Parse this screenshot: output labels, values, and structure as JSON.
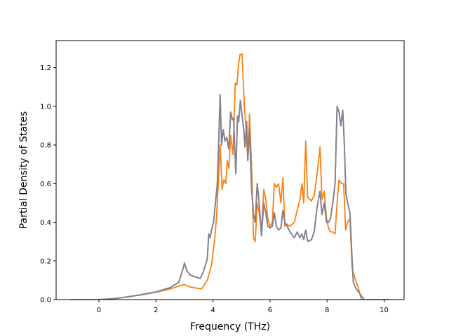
{
  "chart_data": {
    "type": "line",
    "title": "",
    "xlabel": "Frequency (THz)",
    "ylabel": "Partial Density of States",
    "xlim": [
      -1.5,
      10.7
    ],
    "ylim": [
      0.0,
      1.34
    ],
    "xticks": [
      0,
      2,
      4,
      6,
      8,
      10
    ],
    "xtick_labels": [
      "0",
      "2",
      "4",
      "6",
      "8",
      "10"
    ],
    "yticks": [
      0.0,
      0.2,
      0.4,
      0.6,
      0.8,
      1.0,
      1.2
    ],
    "ytick_labels": [
      "0.0",
      "0.2",
      "0.4",
      "0.6",
      "0.8",
      "1.0",
      "1.2"
    ],
    "grid": false,
    "legend": "none",
    "series": [
      {
        "color": "#ff7f0e",
        "points": [
          [
            -1.0,
            0.0
          ],
          [
            0.0,
            0.0
          ],
          [
            0.5,
            0.004
          ],
          [
            1.0,
            0.013
          ],
          [
            1.5,
            0.025
          ],
          [
            2.0,
            0.038
          ],
          [
            2.5,
            0.055
          ],
          [
            2.9,
            0.075
          ],
          [
            3.0,
            0.078
          ],
          [
            3.2,
            0.065
          ],
          [
            3.6,
            0.055
          ],
          [
            3.8,
            0.1
          ],
          [
            3.95,
            0.18
          ],
          [
            4.05,
            0.3
          ],
          [
            4.12,
            0.42
          ],
          [
            4.18,
            0.58
          ],
          [
            4.25,
            0.8
          ],
          [
            4.32,
            0.57
          ],
          [
            4.38,
            0.62
          ],
          [
            4.45,
            0.6
          ],
          [
            4.5,
            0.72
          ],
          [
            4.56,
            0.68
          ],
          [
            4.62,
            0.85
          ],
          [
            4.7,
            0.75
          ],
          [
            4.78,
            1.12
          ],
          [
            4.84,
            1.11
          ],
          [
            4.9,
            1.22
          ],
          [
            4.95,
            1.27
          ],
          [
            5.02,
            1.27
          ],
          [
            5.1,
            1.0
          ],
          [
            5.16,
            0.88
          ],
          [
            5.22,
            0.72
          ],
          [
            5.28,
            0.96
          ],
          [
            5.35,
            0.7
          ],
          [
            5.42,
            0.32
          ],
          [
            5.48,
            0.3
          ],
          [
            5.55,
            0.5
          ],
          [
            5.62,
            0.45
          ],
          [
            5.7,
            0.35
          ],
          [
            5.78,
            0.57
          ],
          [
            5.85,
            0.52
          ],
          [
            5.92,
            0.42
          ],
          [
            6.0,
            0.38
          ],
          [
            6.08,
            0.4
          ],
          [
            6.15,
            0.6
          ],
          [
            6.22,
            0.58
          ],
          [
            6.3,
            0.6
          ],
          [
            6.38,
            0.5
          ],
          [
            6.45,
            0.63
          ],
          [
            6.52,
            0.38
          ],
          [
            6.6,
            0.39
          ],
          [
            6.7,
            0.38
          ],
          [
            6.85,
            0.4
          ],
          [
            6.95,
            0.46
          ],
          [
            7.05,
            0.52
          ],
          [
            7.12,
            0.6
          ],
          [
            7.18,
            0.5
          ],
          [
            7.25,
            0.82
          ],
          [
            7.32,
            0.53
          ],
          [
            7.45,
            0.51
          ],
          [
            7.55,
            0.54
          ],
          [
            7.65,
            0.65
          ],
          [
            7.75,
            0.79
          ],
          [
            7.82,
            0.52
          ],
          [
            7.9,
            0.56
          ],
          [
            7.98,
            0.42
          ],
          [
            8.05,
            0.37
          ],
          [
            8.12,
            0.35
          ],
          [
            8.2,
            0.35
          ],
          [
            8.28,
            0.34
          ],
          [
            8.35,
            0.5
          ],
          [
            8.42,
            0.62
          ],
          [
            8.5,
            0.6
          ],
          [
            8.58,
            0.6
          ],
          [
            8.65,
            0.36
          ],
          [
            8.72,
            0.4
          ],
          [
            8.8,
            0.42
          ],
          [
            8.88,
            0.16
          ],
          [
            9.0,
            0.1
          ],
          [
            9.1,
            0.06
          ],
          [
            9.2,
            0.0
          ],
          [
            9.4,
            0.0
          ],
          [
            10.2,
            0.0
          ]
        ]
      },
      {
        "color": "#1f77b4",
        "points": [
          [
            -1.0,
            0.0
          ],
          [
            0.0,
            0.0
          ],
          [
            0.5,
            0.005
          ],
          [
            1.0,
            0.014
          ],
          [
            1.5,
            0.026
          ],
          [
            2.0,
            0.04
          ],
          [
            2.5,
            0.062
          ],
          [
            2.8,
            0.09
          ],
          [
            2.95,
            0.16
          ],
          [
            3.0,
            0.19
          ],
          [
            3.08,
            0.15
          ],
          [
            3.2,
            0.128
          ],
          [
            3.4,
            0.116
          ],
          [
            3.55,
            0.11
          ],
          [
            3.65,
            0.14
          ],
          [
            3.8,
            0.21
          ],
          [
            3.85,
            0.34
          ],
          [
            3.9,
            0.32
          ],
          [
            3.95,
            0.36
          ],
          [
            4.02,
            0.4
          ],
          [
            4.1,
            0.52
          ],
          [
            4.15,
            0.6
          ],
          [
            4.2,
            0.82
          ],
          [
            4.25,
            1.06
          ],
          [
            4.3,
            0.8
          ],
          [
            4.36,
            0.88
          ],
          [
            4.42,
            0.82
          ],
          [
            4.48,
            0.84
          ],
          [
            4.55,
            0.78
          ],
          [
            4.62,
            0.97
          ],
          [
            4.68,
            0.93
          ],
          [
            4.72,
            0.94
          ],
          [
            4.8,
            0.65
          ],
          [
            4.86,
            0.95
          ],
          [
            4.9,
            0.92
          ],
          [
            4.96,
            1.03
          ],
          [
            5.02,
            0.95
          ],
          [
            5.08,
            0.88
          ],
          [
            5.12,
            0.79
          ],
          [
            5.18,
            0.92
          ],
          [
            5.22,
            0.72
          ],
          [
            5.28,
            0.88
          ],
          [
            5.35,
            0.58
          ],
          [
            5.42,
            0.44
          ],
          [
            5.48,
            0.4
          ],
          [
            5.55,
            0.6
          ],
          [
            5.62,
            0.5
          ],
          [
            5.7,
            0.33
          ],
          [
            5.78,
            0.5
          ],
          [
            5.85,
            0.45
          ],
          [
            5.92,
            0.38
          ],
          [
            6.0,
            0.37
          ],
          [
            6.08,
            0.38
          ],
          [
            6.15,
            0.45
          ],
          [
            6.22,
            0.38
          ],
          [
            6.3,
            0.36
          ],
          [
            6.38,
            0.37
          ],
          [
            6.45,
            0.46
          ],
          [
            6.52,
            0.4
          ],
          [
            6.6,
            0.38
          ],
          [
            6.7,
            0.35
          ],
          [
            6.85,
            0.32
          ],
          [
            6.95,
            0.35
          ],
          [
            7.05,
            0.32
          ],
          [
            7.12,
            0.34
          ],
          [
            7.18,
            0.31
          ],
          [
            7.25,
            0.36
          ],
          [
            7.32,
            0.3
          ],
          [
            7.45,
            0.31
          ],
          [
            7.55,
            0.35
          ],
          [
            7.65,
            0.48
          ],
          [
            7.75,
            0.56
          ],
          [
            7.82,
            0.44
          ],
          [
            7.9,
            0.5
          ],
          [
            7.98,
            0.4
          ],
          [
            8.05,
            0.4
          ],
          [
            8.12,
            0.42
          ],
          [
            8.2,
            0.5
          ],
          [
            8.28,
            0.6
          ],
          [
            8.35,
            1.0
          ],
          [
            8.42,
            0.97
          ],
          [
            8.48,
            0.9
          ],
          [
            8.55,
            0.98
          ],
          [
            8.6,
            0.82
          ],
          [
            8.66,
            0.55
          ],
          [
            8.72,
            0.5
          ],
          [
            8.8,
            0.45
          ],
          [
            8.88,
            0.2
          ],
          [
            8.92,
            0.09
          ],
          [
            9.0,
            0.06
          ],
          [
            9.1,
            0.04
          ],
          [
            9.2,
            0.02
          ],
          [
            9.3,
            0.0
          ],
          [
            9.5,
            0.0
          ],
          [
            10.2,
            0.0
          ]
        ]
      },
      {
        "color": "#8c7f8c",
        "points": [
          [
            -1.0,
            0.0
          ],
          [
            0.0,
            0.0
          ],
          [
            0.5,
            0.005
          ],
          [
            1.0,
            0.014
          ],
          [
            1.5,
            0.026
          ],
          [
            2.0,
            0.04
          ],
          [
            2.5,
            0.062
          ],
          [
            2.8,
            0.09
          ],
          [
            2.95,
            0.16
          ],
          [
            3.0,
            0.19
          ],
          [
            3.08,
            0.15
          ],
          [
            3.2,
            0.128
          ],
          [
            3.4,
            0.116
          ],
          [
            3.55,
            0.11
          ],
          [
            3.65,
            0.14
          ],
          [
            3.8,
            0.21
          ],
          [
            3.85,
            0.34
          ],
          [
            3.9,
            0.32
          ],
          [
            3.95,
            0.36
          ],
          [
            4.02,
            0.4
          ],
          [
            4.1,
            0.52
          ],
          [
            4.15,
            0.6
          ],
          [
            4.2,
            0.82
          ],
          [
            4.25,
            1.06
          ],
          [
            4.3,
            0.8
          ],
          [
            4.36,
            0.88
          ],
          [
            4.42,
            0.82
          ],
          [
            4.48,
            0.84
          ],
          [
            4.55,
            0.78
          ],
          [
            4.62,
            0.97
          ],
          [
            4.68,
            0.93
          ],
          [
            4.72,
            0.94
          ],
          [
            4.8,
            0.65
          ],
          [
            4.86,
            0.95
          ],
          [
            4.9,
            0.92
          ],
          [
            4.96,
            1.03
          ],
          [
            5.02,
            0.95
          ],
          [
            5.08,
            0.88
          ],
          [
            5.12,
            0.79
          ],
          [
            5.18,
            0.92
          ],
          [
            5.22,
            0.72
          ],
          [
            5.28,
            0.88
          ],
          [
            5.35,
            0.58
          ],
          [
            5.42,
            0.44
          ],
          [
            5.48,
            0.4
          ],
          [
            5.55,
            0.6
          ],
          [
            5.62,
            0.5
          ],
          [
            5.7,
            0.33
          ],
          [
            5.78,
            0.5
          ],
          [
            5.85,
            0.45
          ],
          [
            5.92,
            0.38
          ],
          [
            6.0,
            0.37
          ],
          [
            6.08,
            0.38
          ],
          [
            6.15,
            0.45
          ],
          [
            6.22,
            0.38
          ],
          [
            6.3,
            0.36
          ],
          [
            6.38,
            0.37
          ],
          [
            6.45,
            0.46
          ],
          [
            6.52,
            0.4
          ],
          [
            6.6,
            0.38
          ],
          [
            6.7,
            0.35
          ],
          [
            6.85,
            0.32
          ],
          [
            6.95,
            0.35
          ],
          [
            7.05,
            0.32
          ],
          [
            7.12,
            0.34
          ],
          [
            7.18,
            0.31
          ],
          [
            7.25,
            0.36
          ],
          [
            7.32,
            0.3
          ],
          [
            7.45,
            0.31
          ],
          [
            7.55,
            0.35
          ],
          [
            7.65,
            0.48
          ],
          [
            7.75,
            0.56
          ],
          [
            7.82,
            0.44
          ],
          [
            7.9,
            0.5
          ],
          [
            7.98,
            0.4
          ],
          [
            8.05,
            0.4
          ],
          [
            8.12,
            0.42
          ],
          [
            8.2,
            0.5
          ],
          [
            8.28,
            0.6
          ],
          [
            8.35,
            1.0
          ],
          [
            8.42,
            0.97
          ],
          [
            8.48,
            0.9
          ],
          [
            8.55,
            0.98
          ],
          [
            8.6,
            0.82
          ],
          [
            8.66,
            0.55
          ],
          [
            8.72,
            0.5
          ],
          [
            8.8,
            0.45
          ],
          [
            8.88,
            0.2
          ],
          [
            8.92,
            0.09
          ],
          [
            9.0,
            0.06
          ],
          [
            9.1,
            0.04
          ],
          [
            9.2,
            0.02
          ],
          [
            9.3,
            0.0
          ],
          [
            9.5,
            0.0
          ],
          [
            10.2,
            0.0
          ]
        ]
      }
    ]
  }
}
